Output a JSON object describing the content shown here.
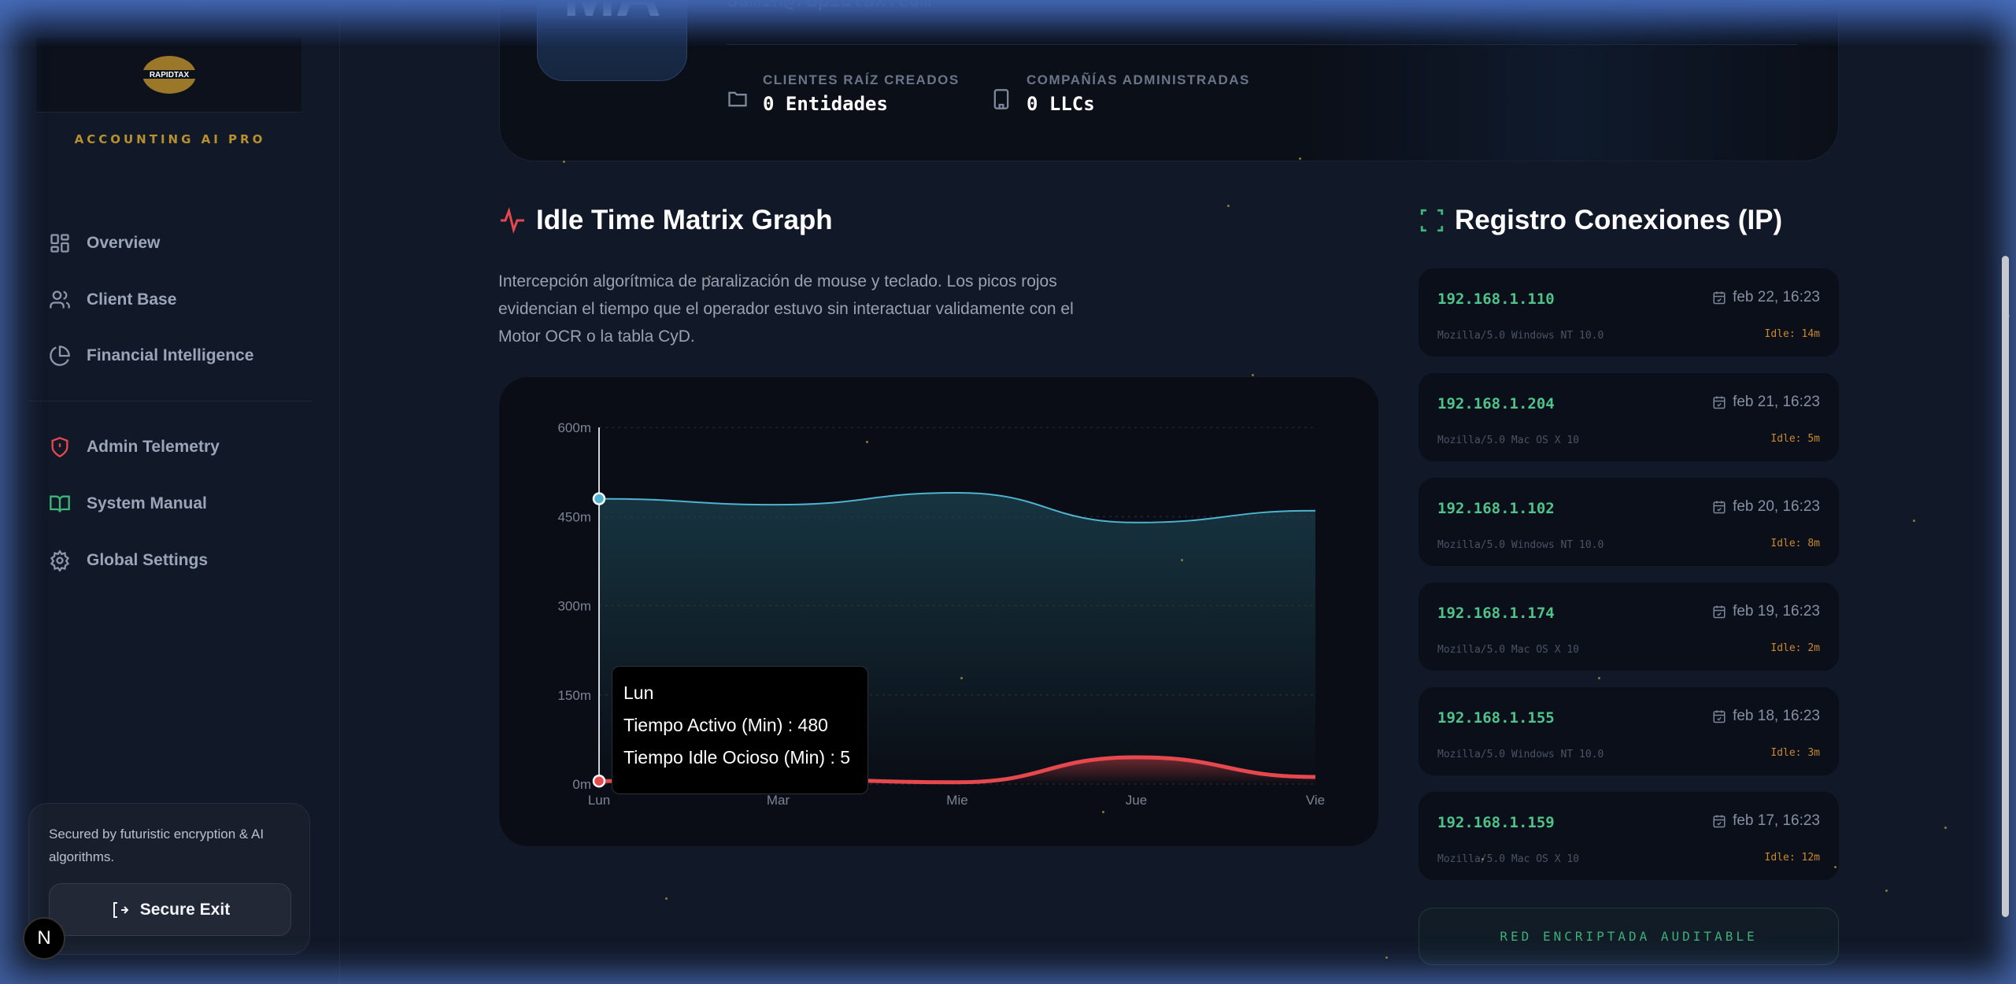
{
  "sidebar": {
    "logo_text": "RAPIDTAX",
    "brand": "ACCOUNTING AI PRO",
    "items": [
      {
        "label": "Overview",
        "icon": "grid-icon"
      },
      {
        "label": "Client Base",
        "icon": "users-icon"
      },
      {
        "label": "Financial Intelligence",
        "icon": "pie-chart-icon"
      },
      {
        "label": "Admin Telemetry",
        "icon": "shield-alert-icon",
        "color": "#e5484d"
      },
      {
        "label": "System Manual",
        "icon": "book-open-icon",
        "color": "#3fb57a"
      },
      {
        "label": "Global Settings",
        "icon": "gear-icon"
      }
    ],
    "security_note": "Secured by futuristic encryption & AI algorithms.",
    "exit_label": "Secure Exit",
    "badge": "N"
  },
  "profile": {
    "initials": "MA",
    "email": "admin@rapidtax.com",
    "stats": [
      {
        "label": "CLIENTES RAÍZ CREADOS",
        "value": "0 Entidades",
        "icon": "folder-icon"
      },
      {
        "label": "COMPAÑÍAS ADMINISTRADAS",
        "value": "0 LLCs",
        "icon": "building-icon"
      }
    ]
  },
  "idle_section": {
    "title": "Idle Time Matrix Graph",
    "description": "Intercepción algorítmica de paralización de mouse y teclado. Los picos rojos evidencian el tiempo que el operador estuvo sin interactuar validamente con el Motor OCR o la tabla CyD."
  },
  "chart_data": {
    "type": "area",
    "categories": [
      "Lun",
      "Mar",
      "Mie",
      "Jue",
      "Vie"
    ],
    "series": [
      {
        "name": "Tiempo Activo (Min)",
        "values": [
          480,
          470,
          490,
          440,
          460
        ],
        "color": "#4fb3cf"
      },
      {
        "name": "Tiempo Idle Ocioso (Min)",
        "values": [
          5,
          8,
          3,
          45,
          12
        ],
        "color": "#e5484d"
      }
    ],
    "yticks": [
      "0m",
      "150m",
      "300m",
      "450m",
      "600m"
    ],
    "ylim": [
      0,
      600
    ],
    "grid": true,
    "tooltip": {
      "category": "Lun",
      "lines": [
        "Tiempo Activo (Min) : 480",
        "Tiempo Idle Ocioso (Min) : 5"
      ]
    }
  },
  "connections": {
    "title": "Registro Conexiones (IP)",
    "items": [
      {
        "ip": "192.168.1.110",
        "date": "feb 22, 16:23",
        "ua": "Mozilla/5.0 Windows NT 10.0",
        "idle": "Idle: 14m"
      },
      {
        "ip": "192.168.1.204",
        "date": "feb 21, 16:23",
        "ua": "Mozilla/5.0 Mac OS X 10",
        "idle": "Idle: 5m"
      },
      {
        "ip": "192.168.1.102",
        "date": "feb 20, 16:23",
        "ua": "Mozilla/5.0 Windows NT 10.0",
        "idle": "Idle: 8m"
      },
      {
        "ip": "192.168.1.174",
        "date": "feb 19, 16:23",
        "ua": "Mozilla/5.0 Mac OS X 10",
        "idle": "Idle: 2m"
      },
      {
        "ip": "192.168.1.155",
        "date": "feb 18, 16:23",
        "ua": "Mozilla/5.0 Windows NT 10.0",
        "idle": "Idle: 3m"
      },
      {
        "ip": "192.168.1.159",
        "date": "feb 17, 16:23",
        "ua": "Mozilla/5.0 Mac OS X 10",
        "idle": "Idle: 12m"
      }
    ],
    "footer_button": "RED ENCRIPTADA AUDITABLE"
  }
}
